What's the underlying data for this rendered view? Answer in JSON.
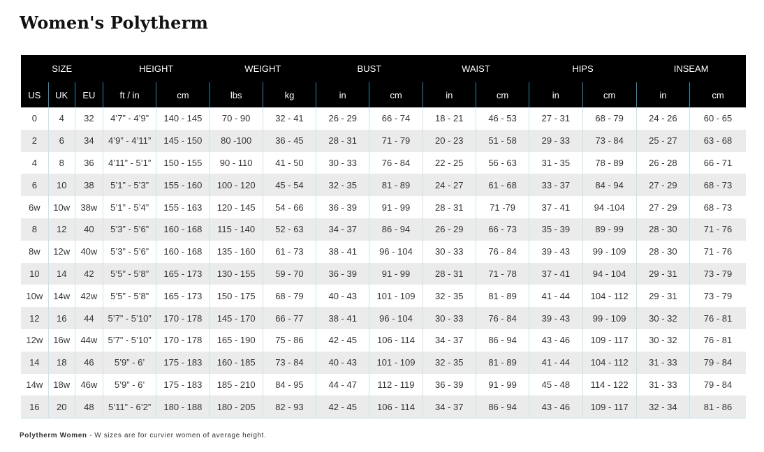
{
  "title": "Women's Polytherm",
  "groups": [
    "SIZE",
    "HEIGHT",
    "WEIGHT",
    "BUST",
    "WAIST",
    "HIPS",
    "INSEAM"
  ],
  "units": [
    "US",
    "UK",
    "EU",
    "ft / in",
    "cm",
    "lbs",
    "kg",
    "in",
    "cm",
    "in",
    "cm",
    "in",
    "cm",
    "in",
    "cm"
  ],
  "rows": [
    [
      "0",
      "4",
      "32",
      "4’7” - 4’9”",
      "140 - 145",
      "70 - 90",
      "32 - 41",
      "26 - 29",
      "66 - 74",
      "18 - 21",
      "46 - 53",
      "27 - 31",
      "68 - 79",
      "24 - 26",
      "60 - 65"
    ],
    [
      "2",
      "6",
      "34",
      "4’9” - 4’11”",
      "145 - 150",
      "80 -100",
      "36 - 45",
      "28 - 31",
      "71 - 79",
      "20 - 23",
      "51 - 58",
      "29 - 33",
      "73 - 84",
      "25 - 27",
      "63 - 68"
    ],
    [
      "4",
      "8",
      "36",
      "4’11” - 5’1”",
      "150 - 155",
      "90 - 110",
      "41 - 50",
      "30 - 33",
      "76 - 84",
      "22 - 25",
      "56 - 63",
      "31 - 35",
      "78 - 89",
      "26 - 28",
      "66 - 71"
    ],
    [
      "6",
      "10",
      "38",
      "5’1” - 5’3”",
      "155 - 160",
      "100 - 120",
      "45 - 54",
      "32 - 35",
      "81 - 89",
      "24 - 27",
      "61 - 68",
      "33 - 37",
      "84 - 94",
      "27 - 29",
      "68 - 73"
    ],
    [
      "6w",
      "10w",
      "38w",
      "5’1” - 5’4”",
      "155 - 163",
      "120 - 145",
      "54 - 66",
      "36 - 39",
      "91 - 99",
      "28 - 31",
      "71 -79",
      "37 - 41",
      "94 -104",
      "27 - 29",
      "68 - 73"
    ],
    [
      "8",
      "12",
      "40",
      "5’3” - 5’6”",
      "160 - 168",
      "115 - 140",
      "52 - 63",
      "34 - 37",
      "86 - 94",
      "26 - 29",
      "66 - 73",
      "35 - 39",
      "89 - 99",
      "28 - 30",
      "71 - 76"
    ],
    [
      "8w",
      "12w",
      "40w",
      "5’3” - 5’6”",
      "160 - 168",
      "135 - 160",
      "61 - 73",
      "38 - 41",
      "96 - 104",
      "30 - 33",
      "76 - 84",
      "39 - 43",
      "99 - 109",
      "28 - 30",
      "71 - 76"
    ],
    [
      "10",
      "14",
      "42",
      "5’5” - 5’8”",
      "165 - 173",
      "130 - 155",
      "59 - 70",
      "36 - 39",
      "91 - 99",
      "28 - 31",
      "71 - 78",
      "37 - 41",
      "94 - 104",
      "29 - 31",
      "73 - 79"
    ],
    [
      "10w",
      "14w",
      "42w",
      "5’5” - 5’8”",
      "165 - 173",
      "150 - 175",
      "68 - 79",
      "40 - 43",
      "101 - 109",
      "32 - 35",
      "81 - 89",
      "41 - 44",
      "104 - 112",
      "29 - 31",
      "73 - 79"
    ],
    [
      "12",
      "16",
      "44",
      "5’7” - 5’10”",
      "170 - 178",
      "145 - 170",
      "66 - 77",
      "38 - 41",
      "96 - 104",
      "30 - 33",
      "76 - 84",
      "39 - 43",
      "99 - 109",
      "30 - 32",
      "76 - 81"
    ],
    [
      "12w",
      "16w",
      "44w",
      "5’7” - 5’10”",
      "170 - 178",
      "165 - 190",
      "75 - 86",
      "42 - 45",
      "106 - 114",
      "34 - 37",
      "86 - 94",
      "43 - 46",
      "109 - 117",
      "30 - 32",
      "76 - 81"
    ],
    [
      "14",
      "18",
      "46",
      "5’9” - 6’",
      "175 - 183",
      "160 - 185",
      "73 - 84",
      "40 - 43",
      "101 - 109",
      "32 - 35",
      "81 - 89",
      "41 - 44",
      "104 - 112",
      "31 - 33",
      "79 - 84"
    ],
    [
      "14w",
      "18w",
      "46w",
      "5’9” - 6’",
      "175 - 183",
      "185 - 210",
      "84 - 95",
      "44 - 47",
      "112 - 119",
      "36 - 39",
      "91 - 99",
      "45 - 48",
      "114 - 122",
      "31 - 33",
      "79 - 84"
    ],
    [
      "16",
      "20",
      "48",
      "5’11” - 6’2”",
      "180 - 188",
      "180 - 205",
      "82 - 93",
      "42 - 45",
      "106 - 114",
      "34 - 37",
      "86 - 94",
      "43 - 46",
      "109 - 117",
      "32 - 34",
      "81 - 86"
    ]
  ],
  "footnote": {
    "brand": "Polytherm Women",
    "text": " - W sizes are for curvier women of average height."
  },
  "colors": {
    "header_bg": "#000000",
    "header_text": "#ffffff",
    "row_stripe": "#ebebeb",
    "divider": "#c5e5ee",
    "header_divider": "#2a8fb0"
  }
}
